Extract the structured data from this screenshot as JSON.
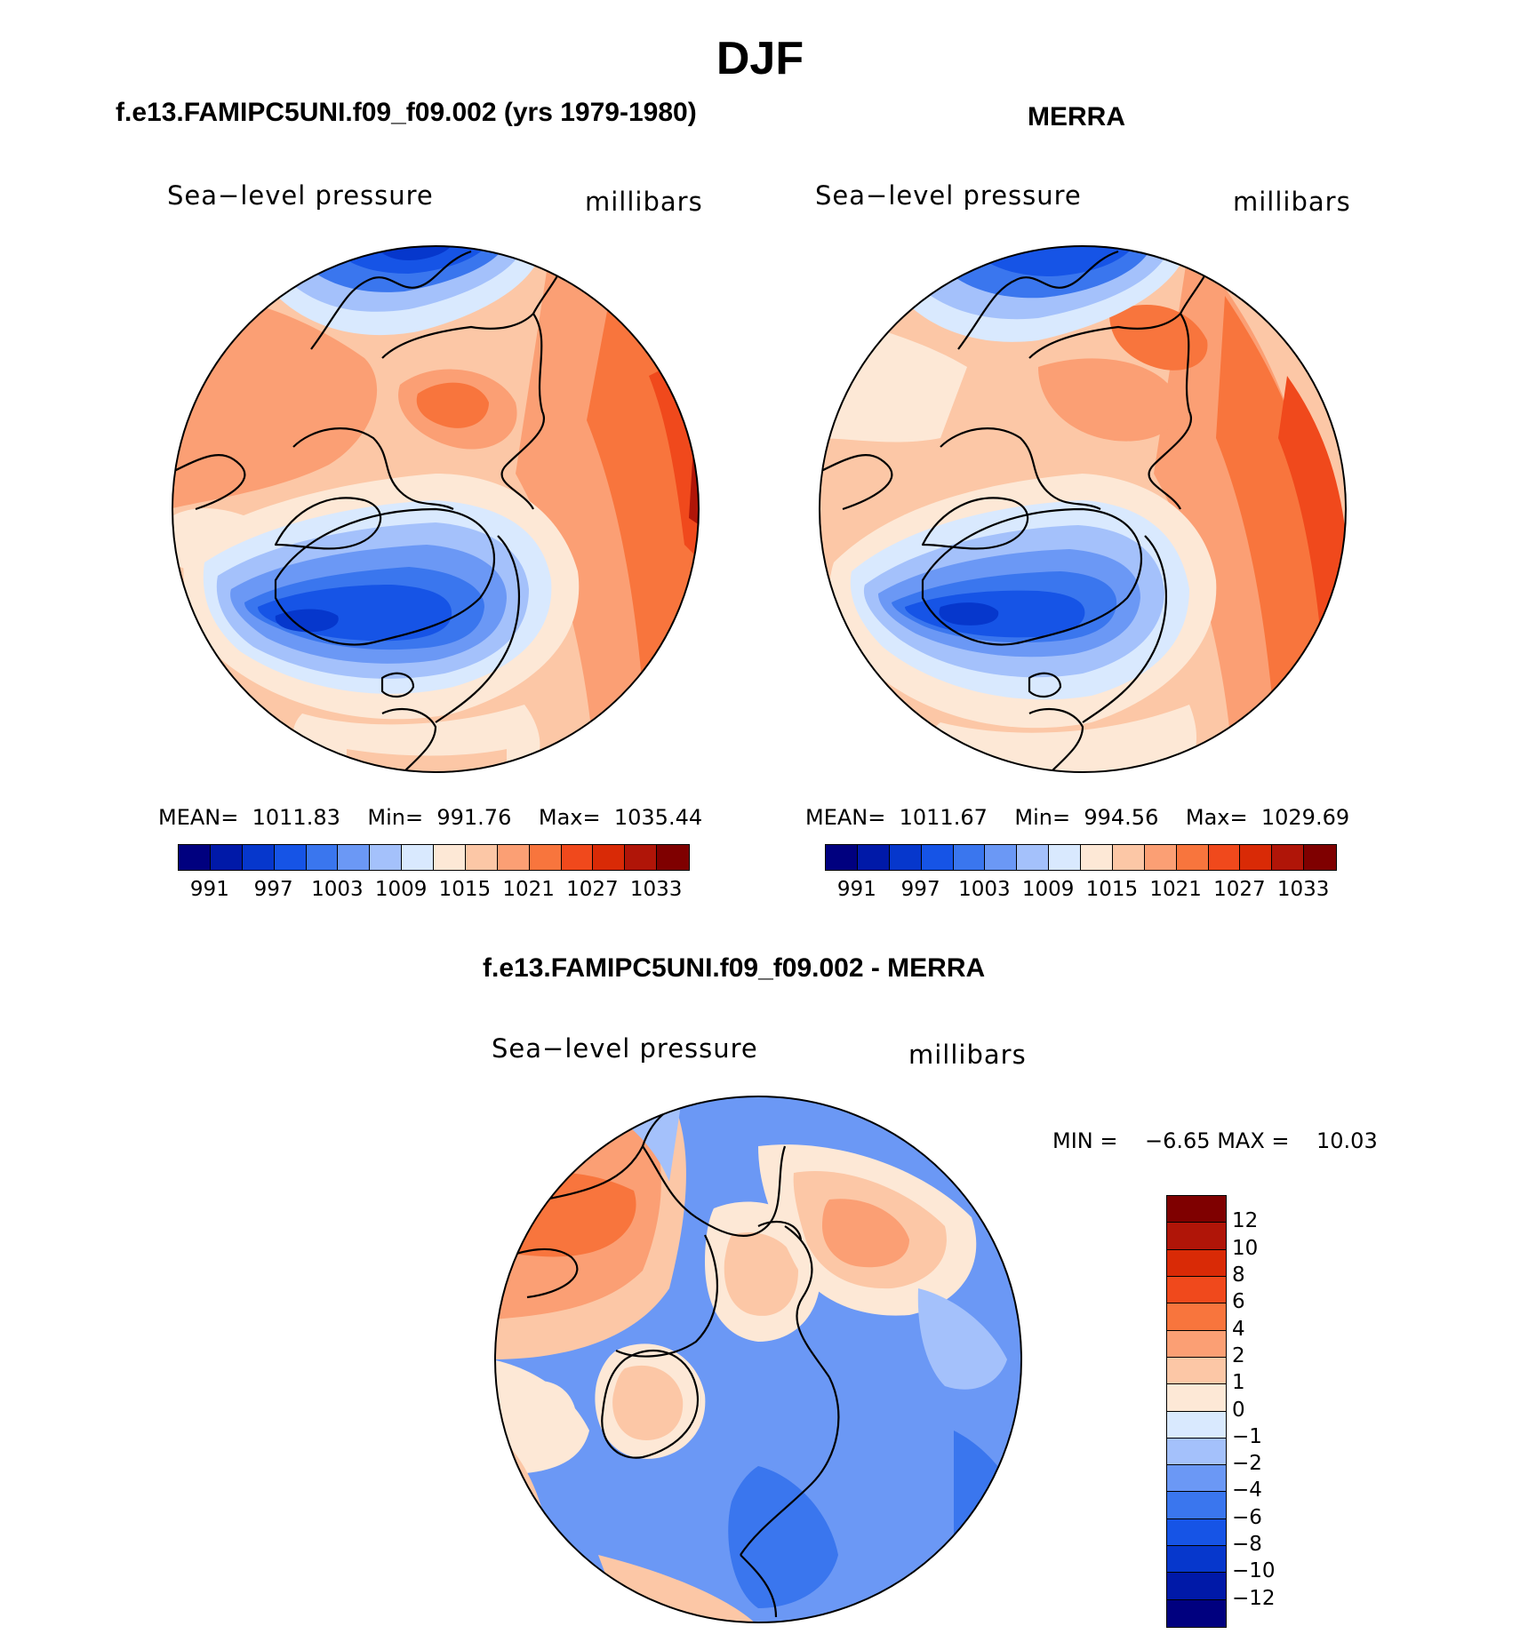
{
  "title": "DJF",
  "panels": [
    {
      "title": "f.e13.FAMIPC5UNI.f09_f09.002 (yrs 1979-1980)",
      "variable": "Sea−level pressure",
      "units": "millibars",
      "stats": {
        "mean_label": "MEAN=",
        "mean": "1011.83",
        "min_label": "Min=",
        "min": "991.76",
        "max_label": "Max=",
        "max": "1035.44"
      }
    },
    {
      "title": "MERRA",
      "variable": "Sea−level pressure",
      "units": "millibars",
      "stats": {
        "mean_label": "MEAN=",
        "mean": "1011.67",
        "min_label": "Min=",
        "min": "994.56",
        "max_label": "Max=",
        "max": "1029.69"
      }
    },
    {
      "title": "f.e13.FAMIPC5UNI.f09_f09.002 - MERRA",
      "variable": "Sea−level pressure",
      "units": "millibars",
      "stats": {
        "min_label": "MIN =",
        "min": "−6.65",
        "max_label": "MAX =",
        "max": "10.03"
      }
    }
  ],
  "colorbar_abs": {
    "colors": [
      "#00007f",
      "#0019a8",
      "#0637cc",
      "#1654e6",
      "#3a76ee",
      "#6b98f5",
      "#a4c1fb",
      "#d9e9fe",
      "#fde8d6",
      "#fcc7a6",
      "#fb9f74",
      "#f8753d",
      "#f0491c",
      "#d92a06",
      "#b01508",
      "#7f0000"
    ],
    "tick_labels": [
      "991",
      "997",
      "1003",
      "1009",
      "1015",
      "1021",
      "1027",
      "1033"
    ]
  },
  "colorbar_diff": {
    "colors": [
      "#7f0000",
      "#b01508",
      "#d92a06",
      "#f0491c",
      "#f8753d",
      "#fb9f74",
      "#fcc7a6",
      "#fde8d6",
      "#d9e9fe",
      "#a4c1fb",
      "#6b98f5",
      "#3a76ee",
      "#1654e6",
      "#0637cc",
      "#0019a8",
      "#00007f"
    ],
    "tick_labels": [
      "12",
      "10",
      "8",
      "6",
      "4",
      "2",
      "1",
      "0",
      "−1",
      "−2",
      "−4",
      "−6",
      "−8",
      "−10",
      "−12"
    ]
  }
}
